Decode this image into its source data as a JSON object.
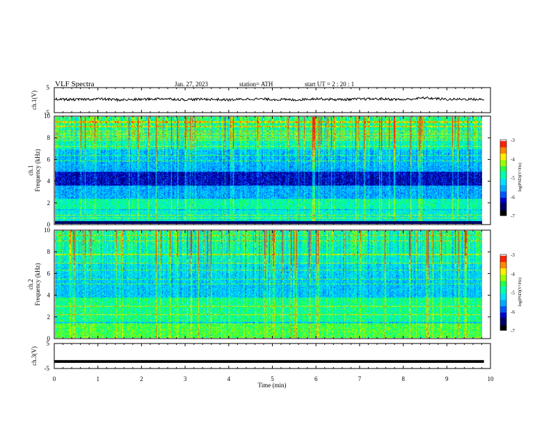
{
  "header": {
    "title": "VLF  Spectra",
    "date": "Jan. 27, 2023",
    "station": "station= ATH",
    "start": "start  UT  =   2  : 20 : 1"
  },
  "colors": {
    "spectro": [
      "#000000",
      "#000066",
      "#0000cc",
      "#0055ff",
      "#00aaff",
      "#00e0ff",
      "#00ffaa",
      "#22ff44",
      "#99ff00",
      "#ffee00",
      "#ff8800",
      "#ff2200",
      "#ffffff"
    ],
    "line": "#000000"
  },
  "chart_data": [
    {
      "type": "line",
      "name": "ch1-waveform",
      "ylabel": "ch.1(V)",
      "ylim": [
        -5,
        5
      ],
      "yticks": [
        "5",
        "-5"
      ],
      "xlim": [
        0,
        10
      ],
      "x": [
        0,
        0.5,
        1,
        1.5,
        2,
        2.5,
        3,
        3.5,
        4,
        4.5,
        5,
        5.5,
        6,
        6.5,
        7,
        7.5,
        8,
        8.5,
        9,
        9.5,
        9.85
      ],
      "values": [
        0.4,
        0.2,
        0.5,
        0.1,
        0.3,
        0.6,
        0.2,
        0.4,
        0.1,
        0.5,
        0.3,
        0.1,
        0.6,
        0.2,
        0.4,
        0.5,
        0.2,
        0.9,
        0.3,
        0.4,
        0.2
      ]
    },
    {
      "type": "heatmap",
      "name": "ch1-spectrogram",
      "ylabel_top": "ch.1",
      "ylabel": "Frequency  (kHz)",
      "ylim": [
        0,
        10
      ],
      "yticks": [
        "0",
        "2",
        "4",
        "6",
        "8",
        "10"
      ],
      "xlim": [
        0,
        10
      ],
      "zlabel": "log(PSD)(V²/Hz)",
      "zlim": [
        -7,
        -3
      ],
      "zticks": [
        "-3",
        "-4",
        "-5",
        "-6",
        "-7"
      ]
    },
    {
      "type": "heatmap",
      "name": "ch2-spectrogram",
      "ylabel_top": "ch.2",
      "ylabel": "Frequency  (kHz)",
      "ylim": [
        0,
        10
      ],
      "yticks": [
        "0",
        "2",
        "4",
        "6",
        "8",
        "10"
      ],
      "xlim": [
        0,
        10
      ],
      "zlabel": "log(PSD)(V²/Hz)",
      "zlim": [
        -7,
        -3
      ],
      "zticks": [
        "-3",
        "-4",
        "-5",
        "-6",
        "-7"
      ]
    },
    {
      "type": "line",
      "name": "ch3-waveform",
      "ylabel": "ch.3(V)",
      "ylim": [
        -5,
        5
      ],
      "yticks": [
        "5",
        "-5"
      ],
      "xlim": [
        0,
        10
      ],
      "x": [
        0,
        9.85
      ],
      "values": [
        -2.2,
        -2.2
      ]
    }
  ],
  "xaxis": {
    "label": "Time  (min)",
    "ticks": [
      "0",
      "1",
      "2",
      "3",
      "4",
      "5",
      "6",
      "7",
      "8",
      "9",
      "10"
    ]
  }
}
